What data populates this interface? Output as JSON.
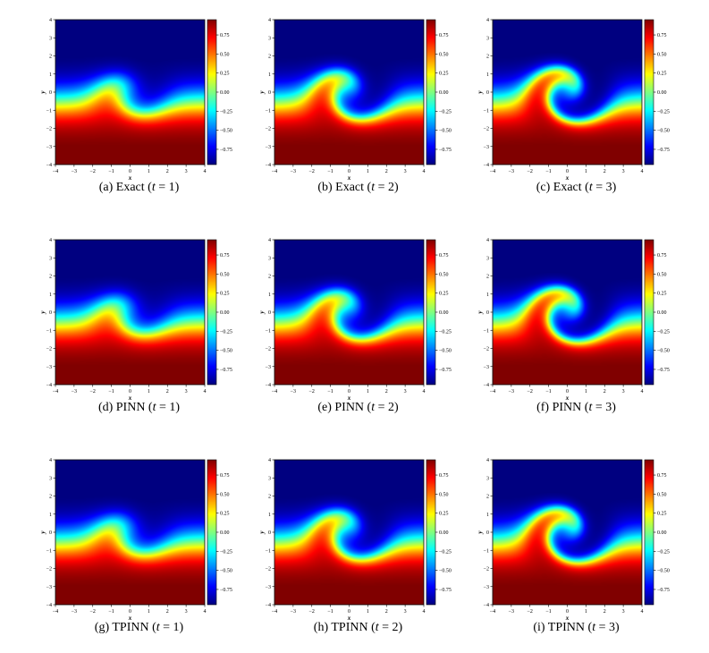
{
  "chart_data": [
    {
      "type": "heatmap",
      "label": "(a)",
      "model": "Exact",
      "t": 1,
      "tick_values": [
        -4,
        -3,
        -2,
        -1,
        0,
        1,
        2,
        3,
        4
      ],
      "xlabel": "x",
      "ylabel": "y",
      "xlim": [
        -4,
        4
      ],
      "ylim": [
        -4,
        4
      ],
      "colorbar_ticks": [
        "0.75",
        "0.50",
        "0.25",
        "0.00",
        "−0.25",
        "−0.50",
        "−0.75"
      ],
      "vlim": [
        -0.95,
        0.95
      ],
      "colormap": "jet"
    },
    {
      "type": "heatmap",
      "label": "(b)",
      "model": "Exact",
      "t": 2,
      "tick_values": [
        -4,
        -3,
        -2,
        -1,
        0,
        1,
        2,
        3,
        4
      ],
      "xlabel": "x",
      "ylabel": "y",
      "xlim": [
        -4,
        4
      ],
      "ylim": [
        -4,
        4
      ],
      "colorbar_ticks": [
        "0.75",
        "0.50",
        "0.25",
        "0.00",
        "−0.25",
        "−0.50",
        "−0.75"
      ],
      "vlim": [
        -0.95,
        0.95
      ],
      "colormap": "jet"
    },
    {
      "type": "heatmap",
      "label": "(c)",
      "model": "Exact",
      "t": 3,
      "tick_values": [
        -4,
        -3,
        -2,
        -1,
        0,
        1,
        2,
        3,
        4
      ],
      "xlabel": "x",
      "ylabel": "y",
      "xlim": [
        -4,
        4
      ],
      "ylim": [
        -4,
        4
      ],
      "colorbar_ticks": [
        "0.75",
        "0.50",
        "0.25",
        "0.00",
        "−0.25",
        "−0.50",
        "−0.75"
      ],
      "vlim": [
        -0.95,
        0.95
      ],
      "colormap": "jet"
    },
    {
      "type": "heatmap",
      "label": "(d)",
      "model": "PINN",
      "t": 1,
      "tick_values": [
        -4,
        -3,
        -2,
        -1,
        0,
        1,
        2,
        3,
        4
      ],
      "xlabel": "x",
      "ylabel": "y",
      "xlim": [
        -4,
        4
      ],
      "ylim": [
        -4,
        4
      ],
      "colorbar_ticks": [
        "0.75",
        "0.50",
        "0.25",
        "0.00",
        "−0.25",
        "−0.50",
        "−0.75"
      ],
      "vlim": [
        -0.95,
        0.95
      ],
      "colormap": "jet"
    },
    {
      "type": "heatmap",
      "label": "(e)",
      "model": "PINN",
      "t": 2,
      "tick_values": [
        -4,
        -3,
        -2,
        -1,
        0,
        1,
        2,
        3,
        4
      ],
      "xlabel": "x",
      "ylabel": "y",
      "xlim": [
        -4,
        4
      ],
      "ylim": [
        -4,
        4
      ],
      "colorbar_ticks": [
        "0.75",
        "0.50",
        "0.25",
        "0.00",
        "−0.25",
        "−0.50",
        "−0.75"
      ],
      "vlim": [
        -0.95,
        0.95
      ],
      "colormap": "jet"
    },
    {
      "type": "heatmap",
      "label": "(f)",
      "model": "PINN",
      "t": 3,
      "tick_values": [
        -4,
        -3,
        -2,
        -1,
        0,
        1,
        2,
        3,
        4
      ],
      "xlabel": "x",
      "ylabel": "y",
      "xlim": [
        -4,
        4
      ],
      "ylim": [
        -4,
        4
      ],
      "colorbar_ticks": [
        "0.75",
        "0.50",
        "0.25",
        "0.00",
        "−0.25",
        "−0.50",
        "−0.75"
      ],
      "vlim": [
        -0.95,
        0.95
      ],
      "colormap": "jet"
    },
    {
      "type": "heatmap",
      "label": "(g)",
      "model": "TPINN",
      "t": 1,
      "tick_values": [
        -4,
        -3,
        -2,
        -1,
        0,
        1,
        2,
        3,
        4
      ],
      "xlabel": "x",
      "ylabel": "y",
      "xlim": [
        -4,
        4
      ],
      "ylim": [
        -4,
        4
      ],
      "colorbar_ticks": [
        "0.75",
        "0.50",
        "0.25",
        "0.00",
        "−0.25",
        "−0.50",
        "−0.75"
      ],
      "vlim": [
        -0.95,
        0.95
      ],
      "colormap": "jet"
    },
    {
      "type": "heatmap",
      "label": "(h)",
      "model": "TPINN",
      "t": 2,
      "tick_values": [
        -4,
        -3,
        -2,
        -1,
        0,
        1,
        2,
        3,
        4
      ],
      "xlabel": "x",
      "ylabel": "y",
      "xlim": [
        -4,
        4
      ],
      "ylim": [
        -4,
        4
      ],
      "colorbar_ticks": [
        "0.75",
        "0.50",
        "0.25",
        "0.00",
        "−0.25",
        "−0.50",
        "−0.75"
      ],
      "vlim": [
        -0.95,
        0.95
      ],
      "colormap": "jet"
    },
    {
      "type": "heatmap",
      "label": "(i)",
      "model": "TPINN",
      "t": 3,
      "tick_values": [
        -4,
        -3,
        -2,
        -1,
        0,
        1,
        2,
        3,
        4
      ],
      "xlabel": "x",
      "ylabel": "y",
      "xlim": [
        -4,
        4
      ],
      "ylim": [
        -4,
        4
      ],
      "colorbar_ticks": [
        "0.75",
        "0.50",
        "0.25",
        "0.00",
        "−0.25",
        "−0.50",
        "−0.75"
      ],
      "vlim": [
        -0.95,
        0.95
      ],
      "colormap": "jet"
    }
  ]
}
